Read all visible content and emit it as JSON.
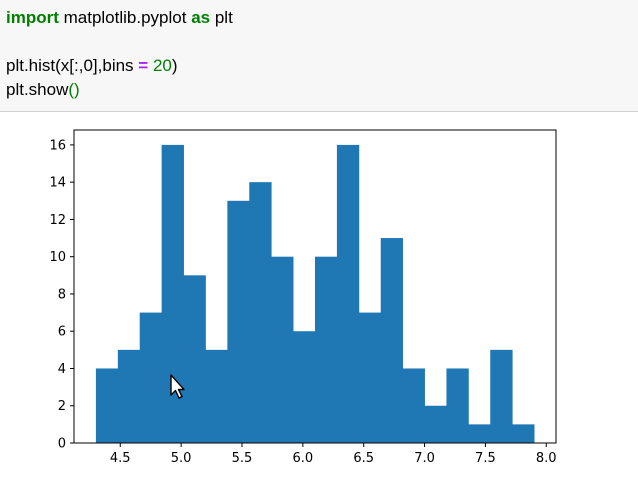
{
  "code": {
    "line1": {
      "kw_import": "import",
      "module": " matplotlib.pyplot ",
      "kw_as": "as",
      "alias": " plt"
    },
    "line3": {
      "pre": "plt.hist(x[:,0],bins ",
      "op": "=",
      "sp": " ",
      "num": "20",
      "post": ")"
    },
    "line4": {
      "pre": "plt.show",
      "parens": "()"
    }
  },
  "chart_data": {
    "type": "bar",
    "bin_edges": [
      4.3,
      4.48,
      4.66,
      4.84,
      5.02,
      5.2,
      5.38,
      5.56,
      5.74,
      5.92,
      6.1,
      6.28,
      6.46,
      6.64,
      6.82,
      7.0,
      7.18,
      7.36,
      7.54,
      7.72,
      7.9
    ],
    "values": [
      4,
      5,
      7,
      16,
      9,
      5,
      13,
      14,
      10,
      6,
      10,
      16,
      7,
      11,
      4,
      2,
      4,
      1,
      5,
      1
    ],
    "xlim": [
      4.12,
      8.08
    ],
    "ylim": [
      0,
      16.8
    ],
    "xticks": [
      4.5,
      5.0,
      5.5,
      6.0,
      6.5,
      7.0,
      7.5,
      8.0
    ],
    "xtick_labels": [
      "4.5",
      "5.0",
      "5.5",
      "6.0",
      "6.5",
      "7.0",
      "7.5",
      "8.0"
    ],
    "yticks": [
      0,
      2,
      4,
      6,
      8,
      10,
      12,
      14,
      16
    ],
    "ytick_labels": [
      "0",
      "2",
      "4",
      "6",
      "8",
      "10",
      "12",
      "14",
      "16"
    ],
    "bar_color": "#1f77b4",
    "grid": false
  },
  "cursor": {
    "icon": "mouse-pointer-icon"
  }
}
